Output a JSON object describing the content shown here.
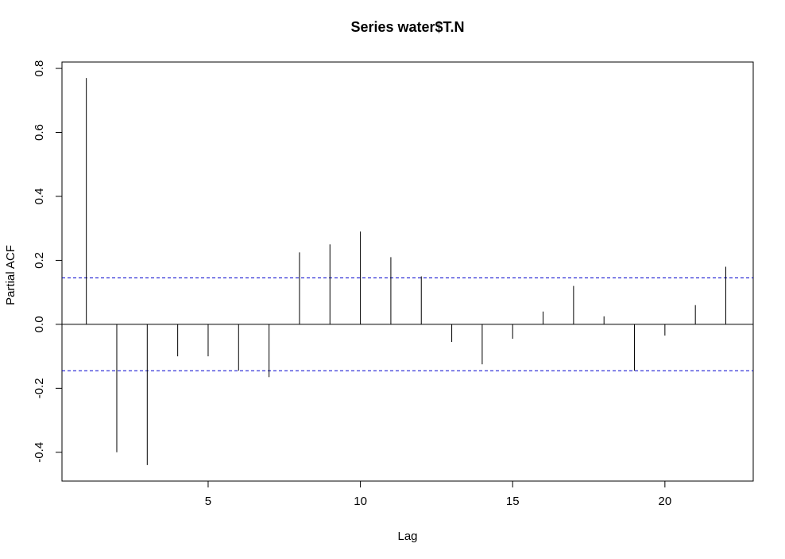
{
  "chart_data": {
    "type": "bar",
    "subtype": "partial-acf",
    "title": "Series  water$T.N",
    "xlabel": "Lag",
    "ylabel": "Partial ACF",
    "xlim": [
      0.2,
      22.9
    ],
    "ylim": [
      -0.49,
      0.82
    ],
    "x_ticks": [
      5,
      10,
      15,
      20
    ],
    "x_tick_labels": [
      "5",
      "10",
      "15",
      "20"
    ],
    "y_ticks": [
      -0.4,
      -0.2,
      0.0,
      0.2,
      0.4,
      0.6,
      0.8
    ],
    "y_tick_labels": [
      "-0.4",
      "-0.2",
      "0.0",
      "0.2",
      "0.4",
      "0.6",
      "0.8"
    ],
    "lags": [
      1,
      2,
      3,
      4,
      5,
      6,
      7,
      8,
      9,
      10,
      11,
      12,
      13,
      14,
      15,
      16,
      17,
      18,
      19,
      20,
      21,
      22
    ],
    "values": [
      0.77,
      -0.4,
      -0.44,
      -0.1,
      -0.1,
      -0.145,
      -0.165,
      0.225,
      0.25,
      0.29,
      0.21,
      0.15,
      -0.055,
      -0.125,
      -0.045,
      0.04,
      0.12,
      0.025,
      -0.145,
      -0.035,
      0.06,
      0.18
    ],
    "confidence_bound": 0.145,
    "colors": {
      "bars": "#000000",
      "zero_line": "#000000",
      "confidence_lines": "#0000CD",
      "axes": "#000000"
    }
  }
}
